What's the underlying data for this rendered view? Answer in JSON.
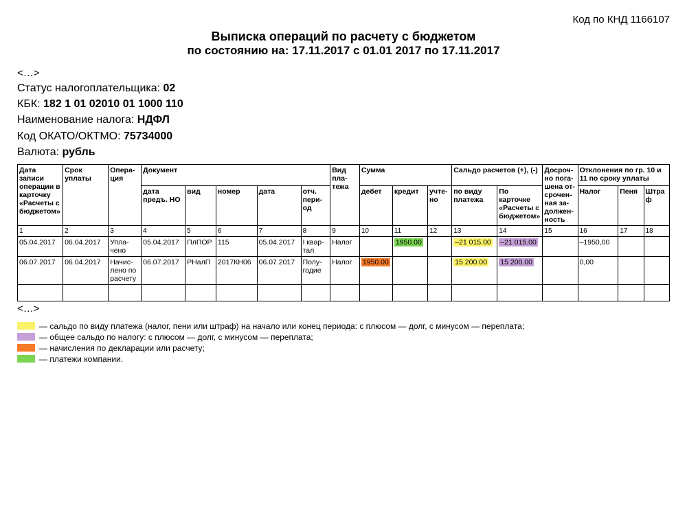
{
  "knd": "Код по КНД 1166107",
  "title1": "Выписка операций по расчету с бюджетом",
  "title2": "по состоянию на: 17.11.2017 с 01.01 2017 по 17.11.2017",
  "ellipsis": "<…>",
  "info": {
    "status_label": "Статус налогоплательщика: ",
    "status_val": "02",
    "kbk_label": "КБК: ",
    "kbk_val": "182 1 01 02010 01 1000 110",
    "tax_label": "Наименование налога: ",
    "tax_val": "НДФЛ",
    "okato_label": "Код ОКАТО/ОКТМО: ",
    "okato_val": "75734000",
    "currency_label": "Валюта: ",
    "currency_val": "рубль"
  },
  "headers": {
    "c1": "Дата записи операции в карточку «Расчеты с бюдже­том»",
    "c2": "Срок уплаты",
    "c3": "Опера­ция",
    "doc_group": "Документ",
    "c4": "дата предъ. НО",
    "c5": "вид",
    "c6": "номер",
    "c7": "дата",
    "c8": "отч. пери­од",
    "c9": "Вид пла­тежа",
    "sum_group": "Сумма",
    "c10": "дебет",
    "c11": "кредит",
    "c12": "уч­те­но",
    "saldo_group": "Сальдо расчетов (+), (-)",
    "c13": "по виду платежа",
    "c14": "По карточке «Расчеты с бюдже­том»",
    "c15": "До­сроч­но пога­шена от­сро­чен­ная за­дол­жен­ность",
    "dev_group": "Отклонения по гр. 10 и 11 по сроку уплаты",
    "c16": "Налог",
    "c17": "Пеня",
    "c18": "Штраф"
  },
  "colnums": [
    "1",
    "2",
    "3",
    "4",
    "5",
    "6",
    "7",
    "8",
    "9",
    "10",
    "11",
    "12",
    "13",
    "14",
    "15",
    "16",
    "17",
    "18"
  ],
  "rows": [
    {
      "c1": "05.04.2017",
      "c2": "06.04.2017",
      "c3": "Упла­чено",
      "c4": "05.04.2017",
      "c5": "ПлПОР",
      "c6": "115",
      "c7": "05.04.2017",
      "c8": "I квар­тал",
      "c9": "Налог",
      "c10": "",
      "c11": "1950.00",
      "c11_hl": "green",
      "c12": "",
      "c13": "–21 015.00",
      "c13_hl": "yellow",
      "c14": "–21 015.00",
      "c14_hl": "purple",
      "c15": "",
      "c16": "–1950,00",
      "c17": "",
      "c18": ""
    },
    {
      "c1": "06.07.2017",
      "c2": "06.04.2017",
      "c3": "Начис­лено по рас­чету",
      "c4": "06.07.2017",
      "c5": "РНалП",
      "c6": "2017КН06",
      "c7": "06.07.2017",
      "c8": "Полу­годие",
      "c9": "Налог",
      "c10": "1950.00",
      "c10_hl": "orange",
      "c11": "",
      "c12": "",
      "c13": "15 200.00",
      "c13_hl": "yellow",
      "c14": "15 200.00",
      "c14_hl": "purple",
      "c15": "",
      "c16": "0,00",
      "c17": "",
      "c18": ""
    }
  ],
  "legend": {
    "l1": " — сальдо по виду платежа (налог, пени или штраф) на начало или конец периода: с плюсом — долг, с минусом — переплата;",
    "l2": " — общее сальдо по налогу: с плюсом — долг, с минусом — переплата;",
    "l3": " — начисления по декларации или расчету;",
    "l4": " — платежи компании."
  },
  "colors": {
    "green": "#7bd552",
    "yellow": "#fcf267",
    "purple": "#c5a0d8",
    "orange": "#f57b29",
    "border": "#000000",
    "bg": "#ffffff"
  },
  "colwidths_pct": [
    6.2,
    6.2,
    4.5,
    6.0,
    4.2,
    5.6,
    6.0,
    4.0,
    4.0,
    4.5,
    4.8,
    3.3,
    6.2,
    6.2,
    4.8,
    5.5,
    3.5,
    3.5
  ]
}
